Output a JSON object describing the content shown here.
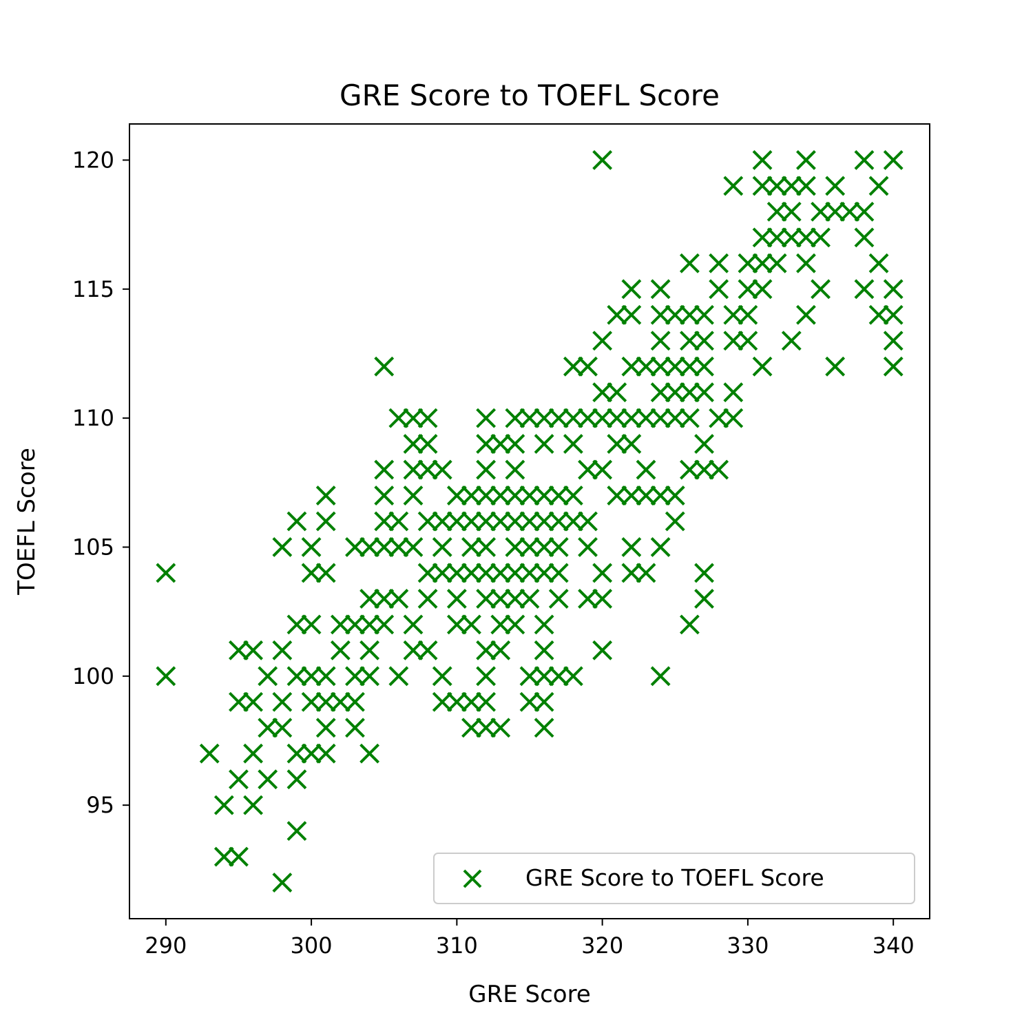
{
  "chart_data": {
    "type": "scatter",
    "title": "GRE Score to TOEFL Score",
    "xlabel": "GRE Score",
    "ylabel": "TOEFL Score",
    "xlim": [
      287.5,
      342.5
    ],
    "ylim": [
      90.6,
      121.4
    ],
    "xticks": [
      290,
      300,
      310,
      320,
      330,
      340
    ],
    "yticks": [
      95,
      100,
      105,
      110,
      115,
      120
    ],
    "grid": false,
    "legend": {
      "position": "lower-right",
      "entries": [
        "GRE Score to TOEFL Score"
      ]
    },
    "marker": "x",
    "color": "#008000",
    "series": [
      {
        "name": "GRE Score to TOEFL Score",
        "points": [
          [
            290,
            104
          ],
          [
            290,
            100
          ],
          [
            293,
            97
          ],
          [
            294,
            95
          ],
          [
            294,
            93
          ],
          [
            295,
            93
          ],
          [
            295,
            96
          ],
          [
            295,
            99
          ],
          [
            295,
            101
          ],
          [
            296,
            101
          ],
          [
            296,
            99
          ],
          [
            296,
            97
          ],
          [
            296,
            95
          ],
          [
            297,
            100
          ],
          [
            297,
            98
          ],
          [
            297,
            96
          ],
          [
            298,
            105
          ],
          [
            298,
            101
          ],
          [
            298,
            99
          ],
          [
            298,
            98
          ],
          [
            298,
            92
          ],
          [
            299,
            106
          ],
          [
            299,
            102
          ],
          [
            299,
            100
          ],
          [
            299,
            97
          ],
          [
            299,
            96
          ],
          [
            299,
            94
          ],
          [
            300,
            102
          ],
          [
            300,
            105
          ],
          [
            300,
            100
          ],
          [
            300,
            97
          ],
          [
            300,
            104
          ],
          [
            300,
            99
          ],
          [
            301,
            107
          ],
          [
            301,
            106
          ],
          [
            301,
            104
          ],
          [
            301,
            100
          ],
          [
            301,
            99
          ],
          [
            301,
            98
          ],
          [
            301,
            97
          ],
          [
            302,
            102
          ],
          [
            302,
            101
          ],
          [
            302,
            99
          ],
          [
            303,
            102
          ],
          [
            303,
            99
          ],
          [
            303,
            98
          ],
          [
            303,
            105
          ],
          [
            303,
            100
          ],
          [
            304,
            105
          ],
          [
            304,
            103
          ],
          [
            304,
            102
          ],
          [
            304,
            101
          ],
          [
            304,
            100
          ],
          [
            304,
            97
          ],
          [
            305,
            112
          ],
          [
            305,
            108
          ],
          [
            305,
            107
          ],
          [
            305,
            106
          ],
          [
            305,
            105
          ],
          [
            305,
            103
          ],
          [
            305,
            102
          ],
          [
            306,
            110
          ],
          [
            306,
            106
          ],
          [
            306,
            105
          ],
          [
            306,
            103
          ],
          [
            306,
            100
          ],
          [
            307,
            110
          ],
          [
            307,
            109
          ],
          [
            307,
            108
          ],
          [
            307,
            107
          ],
          [
            307,
            105
          ],
          [
            307,
            102
          ],
          [
            307,
            101
          ],
          [
            308,
            110
          ],
          [
            308,
            109
          ],
          [
            308,
            108
          ],
          [
            308,
            106
          ],
          [
            308,
            104
          ],
          [
            308,
            103
          ],
          [
            308,
            101
          ],
          [
            309,
            108
          ],
          [
            309,
            106
          ],
          [
            309,
            105
          ],
          [
            309,
            104
          ],
          [
            309,
            100
          ],
          [
            309,
            99
          ],
          [
            310,
            107
          ],
          [
            310,
            106
          ],
          [
            310,
            104
          ],
          [
            310,
            103
          ],
          [
            310,
            102
          ],
          [
            310,
            99
          ],
          [
            311,
            107
          ],
          [
            311,
            106
          ],
          [
            311,
            105
          ],
          [
            311,
            104
          ],
          [
            311,
            102
          ],
          [
            311,
            99
          ],
          [
            311,
            98
          ],
          [
            312,
            110
          ],
          [
            312,
            109
          ],
          [
            312,
            108
          ],
          [
            312,
            107
          ],
          [
            312,
            106
          ],
          [
            312,
            105
          ],
          [
            312,
            104
          ],
          [
            312,
            103
          ],
          [
            312,
            101
          ],
          [
            312,
            100
          ],
          [
            312,
            99
          ],
          [
            312,
            98
          ],
          [
            313,
            109
          ],
          [
            313,
            107
          ],
          [
            313,
            106
          ],
          [
            313,
            104
          ],
          [
            313,
            103
          ],
          [
            313,
            102
          ],
          [
            313,
            101
          ],
          [
            313,
            98
          ],
          [
            314,
            109
          ],
          [
            314,
            108
          ],
          [
            314,
            107
          ],
          [
            314,
            106
          ],
          [
            314,
            105
          ],
          [
            314,
            104
          ],
          [
            314,
            103
          ],
          [
            314,
            102
          ],
          [
            314,
            110
          ],
          [
            315,
            110
          ],
          [
            315,
            107
          ],
          [
            315,
            106
          ],
          [
            315,
            105
          ],
          [
            315,
            104
          ],
          [
            315,
            103
          ],
          [
            315,
            100
          ],
          [
            315,
            99
          ],
          [
            316,
            110
          ],
          [
            316,
            109
          ],
          [
            316,
            107
          ],
          [
            316,
            106
          ],
          [
            316,
            105
          ],
          [
            316,
            104
          ],
          [
            316,
            102
          ],
          [
            316,
            101
          ],
          [
            316,
            100
          ],
          [
            316,
            99
          ],
          [
            316,
            98
          ],
          [
            317,
            110
          ],
          [
            317,
            107
          ],
          [
            317,
            106
          ],
          [
            317,
            105
          ],
          [
            317,
            104
          ],
          [
            317,
            103
          ],
          [
            317,
            100
          ],
          [
            318,
            112
          ],
          [
            318,
            110
          ],
          [
            318,
            109
          ],
          [
            318,
            107
          ],
          [
            318,
            106
          ],
          [
            318,
            100
          ],
          [
            319,
            112
          ],
          [
            319,
            110
          ],
          [
            319,
            108
          ],
          [
            319,
            106
          ],
          [
            319,
            105
          ],
          [
            319,
            103
          ],
          [
            320,
            120
          ],
          [
            320,
            113
          ],
          [
            320,
            111
          ],
          [
            320,
            110
          ],
          [
            320,
            108
          ],
          [
            320,
            104
          ],
          [
            320,
            103
          ],
          [
            320,
            101
          ],
          [
            321,
            114
          ],
          [
            321,
            111
          ],
          [
            321,
            110
          ],
          [
            321,
            109
          ],
          [
            321,
            107
          ],
          [
            322,
            115
          ],
          [
            322,
            114
          ],
          [
            322,
            112
          ],
          [
            322,
            110
          ],
          [
            322,
            109
          ],
          [
            322,
            107
          ],
          [
            322,
            105
          ],
          [
            322,
            104
          ],
          [
            323,
            112
          ],
          [
            323,
            110
          ],
          [
            323,
            108
          ],
          [
            323,
            107
          ],
          [
            323,
            104
          ],
          [
            324,
            115
          ],
          [
            324,
            114
          ],
          [
            324,
            113
          ],
          [
            324,
            112
          ],
          [
            324,
            111
          ],
          [
            324,
            110
          ],
          [
            324,
            107
          ],
          [
            324,
            105
          ],
          [
            324,
            100
          ],
          [
            325,
            114
          ],
          [
            325,
            112
          ],
          [
            325,
            111
          ],
          [
            325,
            110
          ],
          [
            325,
            107
          ],
          [
            325,
            106
          ],
          [
            326,
            116
          ],
          [
            326,
            114
          ],
          [
            326,
            113
          ],
          [
            326,
            112
          ],
          [
            326,
            111
          ],
          [
            326,
            110
          ],
          [
            326,
            108
          ],
          [
            326,
            102
          ],
          [
            327,
            114
          ],
          [
            327,
            113
          ],
          [
            327,
            112
          ],
          [
            327,
            111
          ],
          [
            327,
            109
          ],
          [
            327,
            108
          ],
          [
            327,
            104
          ],
          [
            327,
            103
          ],
          [
            328,
            116
          ],
          [
            328,
            115
          ],
          [
            328,
            110
          ],
          [
            328,
            108
          ],
          [
            329,
            114
          ],
          [
            329,
            113
          ],
          [
            329,
            111
          ],
          [
            329,
            110
          ],
          [
            329,
            119
          ],
          [
            330,
            116
          ],
          [
            330,
            115
          ],
          [
            330,
            114
          ],
          [
            330,
            113
          ],
          [
            331,
            120
          ],
          [
            331,
            119
          ],
          [
            331,
            117
          ],
          [
            331,
            116
          ],
          [
            331,
            115
          ],
          [
            331,
            112
          ],
          [
            332,
            119
          ],
          [
            332,
            118
          ],
          [
            332,
            117
          ],
          [
            332,
            116
          ],
          [
            333,
            119
          ],
          [
            333,
            118
          ],
          [
            333,
            117
          ],
          [
            333,
            113
          ],
          [
            334,
            120
          ],
          [
            334,
            119
          ],
          [
            334,
            117
          ],
          [
            334,
            116
          ],
          [
            334,
            114
          ],
          [
            335,
            118
          ],
          [
            335,
            117
          ],
          [
            335,
            115
          ],
          [
            336,
            119
          ],
          [
            336,
            118
          ],
          [
            336,
            112
          ],
          [
            337,
            118
          ],
          [
            338,
            120
          ],
          [
            338,
            118
          ],
          [
            338,
            117
          ],
          [
            338,
            115
          ],
          [
            339,
            119
          ],
          [
            339,
            116
          ],
          [
            339,
            114
          ],
          [
            340,
            120
          ],
          [
            340,
            115
          ],
          [
            340,
            114
          ],
          [
            340,
            113
          ],
          [
            340,
            112
          ]
        ]
      }
    ]
  }
}
